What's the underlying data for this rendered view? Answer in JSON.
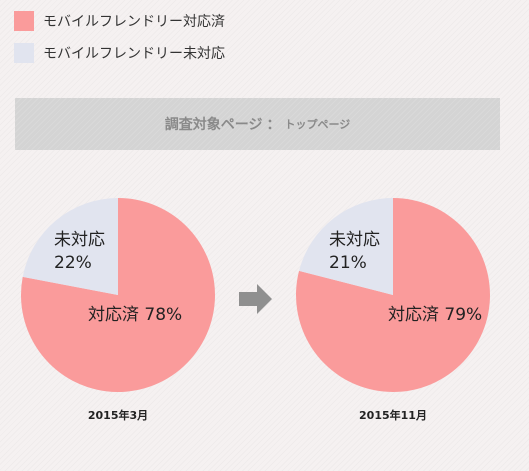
{
  "legend": {
    "items": [
      {
        "label": "モバイルフレンドリー対応済",
        "color": "#fa9b9b"
      },
      {
        "label": "モバイルフレンドリー未対応",
        "color": "#e1e4ef"
      }
    ]
  },
  "banner": {
    "main": "調査対象ページ",
    "separator": "：",
    "sub": "トップページ"
  },
  "arrow": {
    "icon": "right-arrow-icon",
    "color": "#8f8f8f"
  },
  "chart_data": [
    {
      "type": "pie",
      "caption": "2015年3月",
      "slices": [
        {
          "name": "対応済",
          "value": 78,
          "pct_label": "78%",
          "color": "#fa9b9b"
        },
        {
          "name": "未対応",
          "value": 22,
          "pct_label": "22%",
          "color": "#e1e4ef"
        }
      ]
    },
    {
      "type": "pie",
      "caption": "2015年11月",
      "slices": [
        {
          "name": "対応済",
          "value": 79,
          "pct_label": "79%",
          "color": "#fa9b9b"
        },
        {
          "name": "未対応",
          "value": 21,
          "pct_label": "21%",
          "color": "#e1e4ef"
        }
      ]
    }
  ]
}
